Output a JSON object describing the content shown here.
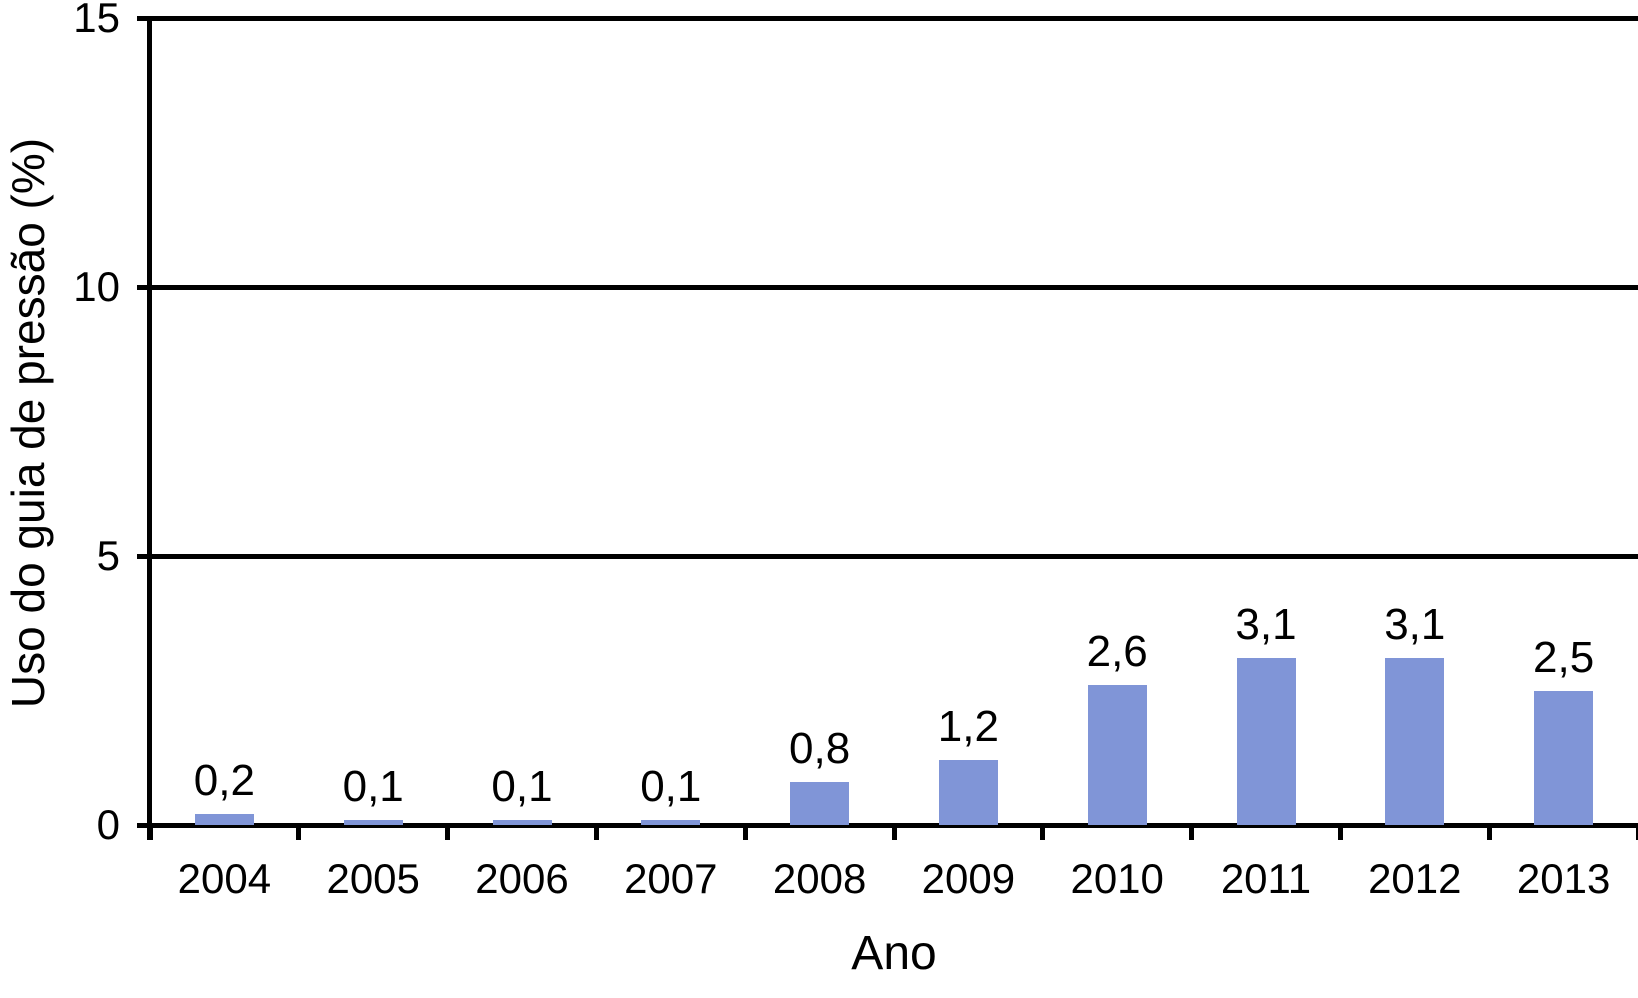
{
  "chart_data": {
    "type": "bar",
    "title": "",
    "xlabel": "Ano",
    "ylabel": "Uso do guia de pressão (%)",
    "categories": [
      "2004",
      "2005",
      "2006",
      "2007",
      "2008",
      "2009",
      "2010",
      "2011",
      "2012",
      "2013"
    ],
    "values": [
      0.2,
      0.1,
      0.1,
      0.1,
      0.8,
      1.2,
      2.6,
      3.1,
      3.1,
      2.5
    ],
    "value_labels": [
      "0,2",
      "0,1",
      "0,1",
      "0,1",
      "0,8",
      "1,2",
      "2,6",
      "3,1",
      "3,1",
      "2,5"
    ],
    "ylim": [
      0,
      15
    ],
    "yticks": [
      0,
      5,
      10,
      15
    ],
    "ytick_labels": [
      "0",
      "5",
      "10",
      "15"
    ],
    "grid": "horizontal",
    "legend": "none",
    "decimal_separator": ",",
    "bar_color": "#8095d7",
    "axis_color": "#000000",
    "background_color": "#ffffff"
  }
}
